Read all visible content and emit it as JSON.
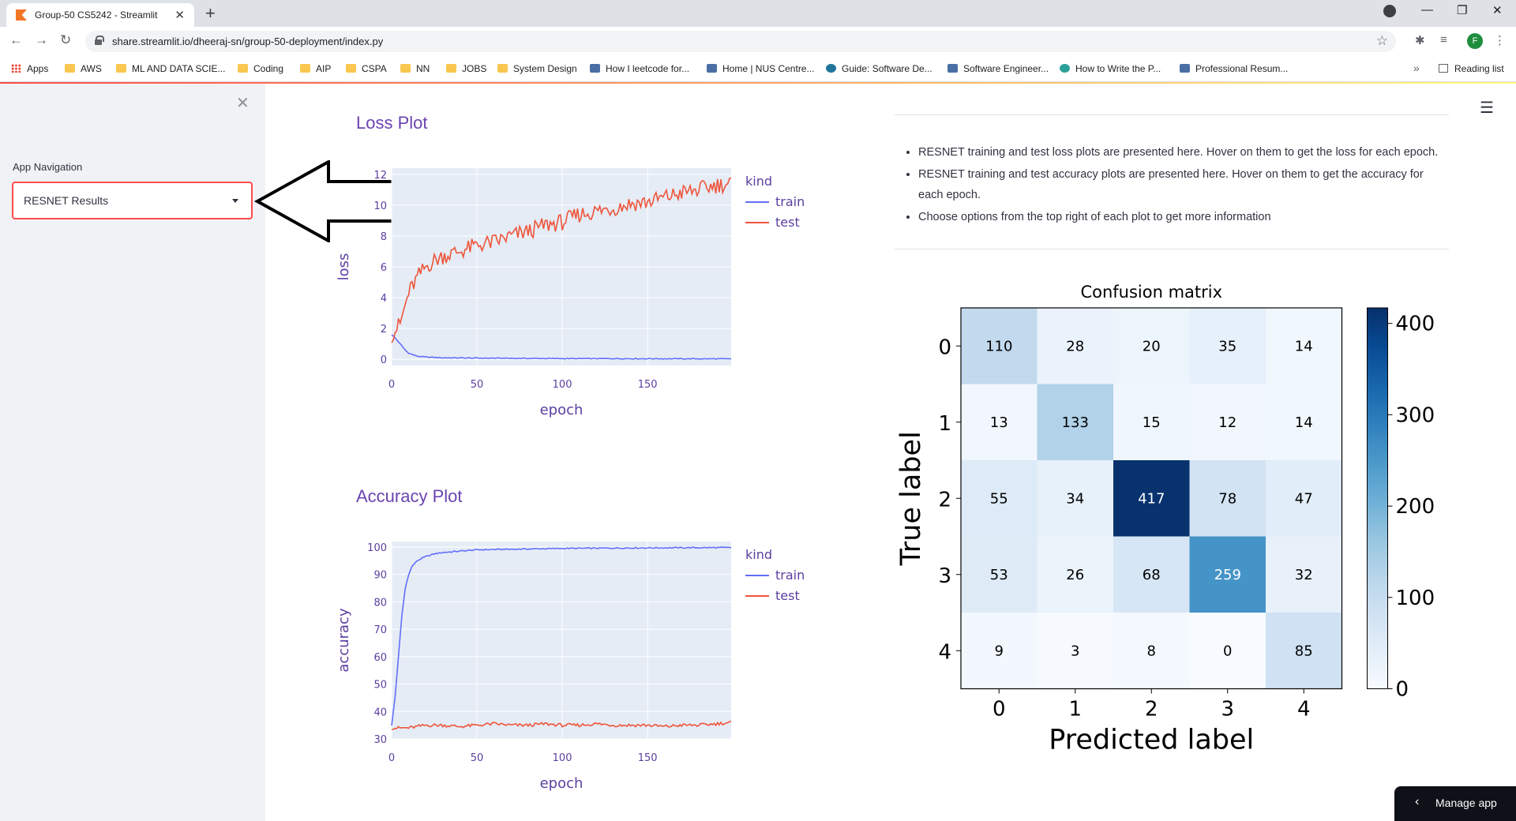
{
  "browser": {
    "tab_title": "Group-50 CS5242 - Streamlit",
    "url": "share.streamlit.io/dheeraj-sn/group-50-deployment/index.py",
    "bookmarks": [
      "Apps",
      "AWS",
      "ML AND DATA SCIE...",
      "Coding",
      "AIP",
      "CSPA",
      "NN",
      "JOBS",
      "System Design",
      "How I leetcode for...",
      "Home | NUS Centre...",
      "Guide: Software De...",
      "Software Engineer...",
      "How to Write the P...",
      "Professional Resum..."
    ],
    "reading_list": "Reading list",
    "profile_initial": "F",
    "more": "»"
  },
  "sidebar": {
    "nav_label": "App Navigation",
    "selected": "RESNET Results"
  },
  "main": {
    "loss_title": "Loss Plot",
    "acc_title": "Accuracy Plot",
    "bullets": [
      "RESNET training and test loss plots are presented here. Hover on them to get the loss for each epoch.",
      "RESNET training and test accuracy plots are presented here. Hover on them to get the accuracy for each epoch.",
      "Choose options from the top right of each plot to get more information"
    ],
    "manage_app": "Manage app"
  },
  "chart_data": [
    {
      "type": "line",
      "xlabel": "epoch",
      "ylabel": "loss",
      "xlim": [
        0,
        199
      ],
      "ylim": [
        -0.4,
        12.4
      ],
      "xticks": [
        0,
        50,
        100,
        150
      ],
      "yticks": [
        0,
        2,
        4,
        6,
        8,
        10,
        12
      ],
      "legend_title": "kind",
      "legend_placement": "right",
      "grid": true,
      "series": [
        {
          "name": "train",
          "color": "#636efa",
          "x": [
            0,
            2,
            5,
            8,
            10,
            15,
            20,
            30,
            50,
            100,
            150,
            199
          ],
          "values": [
            1.6,
            1.4,
            1.0,
            0.6,
            0.4,
            0.2,
            0.15,
            0.1,
            0.08,
            0.05,
            0.04,
            0.03
          ]
        },
        {
          "name": "test",
          "color": "#ef553b",
          "x": [
            0,
            5,
            10,
            15,
            20,
            25,
            30,
            40,
            50,
            60,
            70,
            80,
            90,
            100,
            110,
            120,
            130,
            140,
            150,
            160,
            170,
            180,
            190,
            199
          ],
          "values": [
            1.6,
            2.3,
            4.3,
            5.3,
            6.0,
            6.4,
            6.7,
            7.0,
            7.4,
            7.6,
            8.0,
            8.3,
            8.7,
            8.9,
            9.4,
            9.6,
            9.8,
            10.1,
            10.2,
            10.5,
            10.8,
            11.0,
            11.3,
            11.4
          ]
        }
      ]
    },
    {
      "type": "line",
      "xlabel": "epoch",
      "ylabel": "accuracy",
      "xlim": [
        0,
        199
      ],
      "ylim": [
        30,
        102
      ],
      "xticks": [
        0,
        50,
        100,
        150
      ],
      "yticks": [
        30,
        40,
        50,
        60,
        70,
        80,
        90,
        100
      ],
      "legend_title": "kind",
      "legend_placement": "right",
      "grid": true,
      "series": [
        {
          "name": "train",
          "color": "#636efa",
          "x": [
            0,
            2,
            4,
            6,
            8,
            10,
            12,
            15,
            18,
            20,
            25,
            30,
            40,
            50,
            100,
            150,
            199
          ],
          "values": [
            35,
            45,
            60,
            75,
            85,
            90,
            93,
            95,
            96,
            96.5,
            97.5,
            98,
            98.5,
            99,
            99.5,
            99.7,
            99.8
          ]
        },
        {
          "name": "test",
          "color": "#ef553b",
          "x": [
            0,
            10,
            20,
            30,
            40,
            50,
            60,
            70,
            80,
            90,
            100,
            110,
            120,
            130,
            140,
            150,
            160,
            170,
            180,
            190,
            199
          ],
          "values": [
            34,
            34,
            35,
            35,
            34.5,
            35,
            35.5,
            35,
            35,
            35.5,
            35,
            35,
            35.5,
            35,
            35,
            35,
            34.5,
            35,
            35,
            35.5,
            36
          ]
        }
      ]
    },
    {
      "type": "heatmap",
      "title": "Confusion matrix",
      "xlabel": "Predicted label",
      "ylabel": "True label",
      "x_tick_labels": [
        "0",
        "1",
        "2",
        "3",
        "4"
      ],
      "y_tick_labels": [
        "0",
        "1",
        "2",
        "3",
        "4"
      ],
      "values": [
        [
          110,
          28,
          20,
          35,
          14
        ],
        [
          13,
          133,
          15,
          12,
          14
        ],
        [
          55,
          34,
          417,
          78,
          47
        ],
        [
          53,
          26,
          68,
          259,
          32
        ],
        [
          9,
          3,
          8,
          0,
          85
        ]
      ],
      "colorbar_ticks": [
        0,
        100,
        200,
        300,
        400
      ],
      "colormap": "Blues"
    }
  ]
}
